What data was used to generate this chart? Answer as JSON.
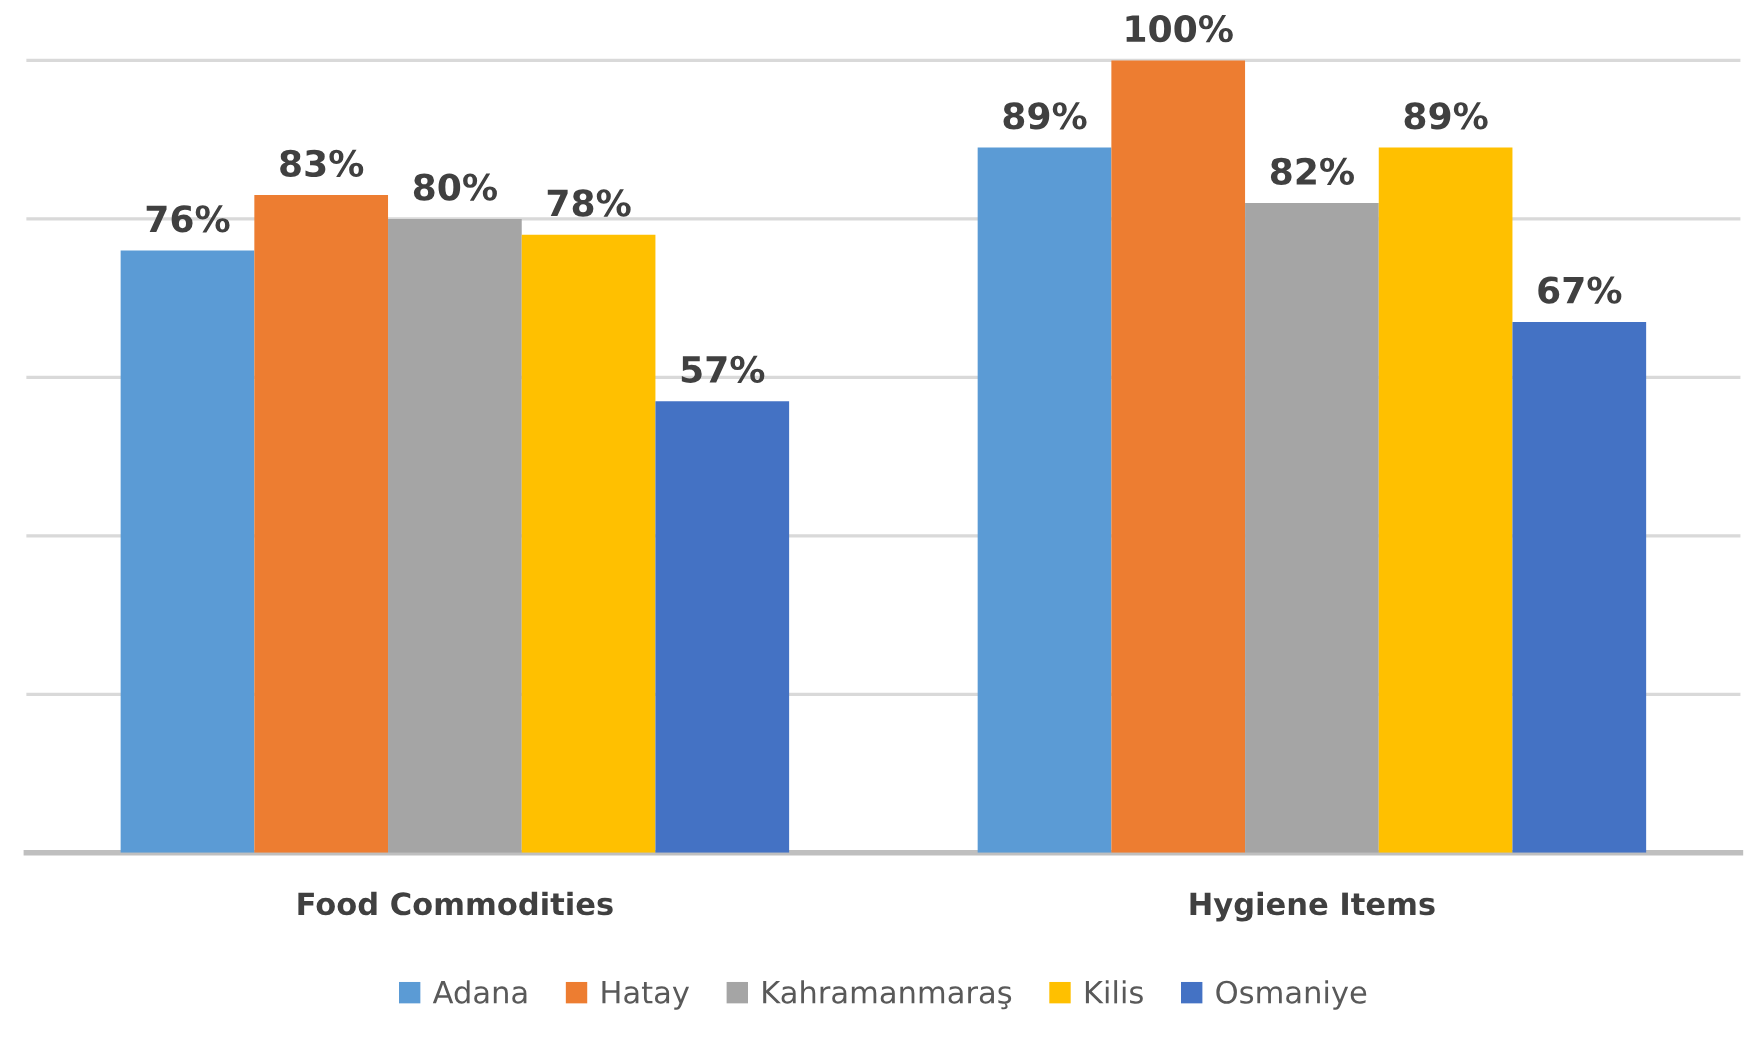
{
  "chart_data": {
    "type": "bar",
    "categories": [
      "Food Commodities",
      "Hygiene Items"
    ],
    "series": [
      {
        "name": "Adana",
        "color": "#5b9bd5",
        "values": [
          76,
          89
        ],
        "value_labels": [
          "76%",
          "89%"
        ]
      },
      {
        "name": "Hatay",
        "color": "#ed7d31",
        "values": [
          83,
          100
        ],
        "value_labels": [
          "83%",
          "100%"
        ]
      },
      {
        "name": "Kahramanmaraş",
        "color": "#a5a5a5",
        "values": [
          80,
          82
        ],
        "value_labels": [
          "80%",
          "82%"
        ]
      },
      {
        "name": "Kilis",
        "color": "#ffc000",
        "values": [
          78,
          89
        ],
        "value_labels": [
          "78%",
          "89%"
        ]
      },
      {
        "name": "Osmaniye",
        "color": "#4472c4",
        "values": [
          57,
          67
        ],
        "value_labels": [
          "57%",
          "67%"
        ]
      }
    ],
    "grid": "y",
    "legend": "bottom",
    "tick_labels": "x"
  }
}
